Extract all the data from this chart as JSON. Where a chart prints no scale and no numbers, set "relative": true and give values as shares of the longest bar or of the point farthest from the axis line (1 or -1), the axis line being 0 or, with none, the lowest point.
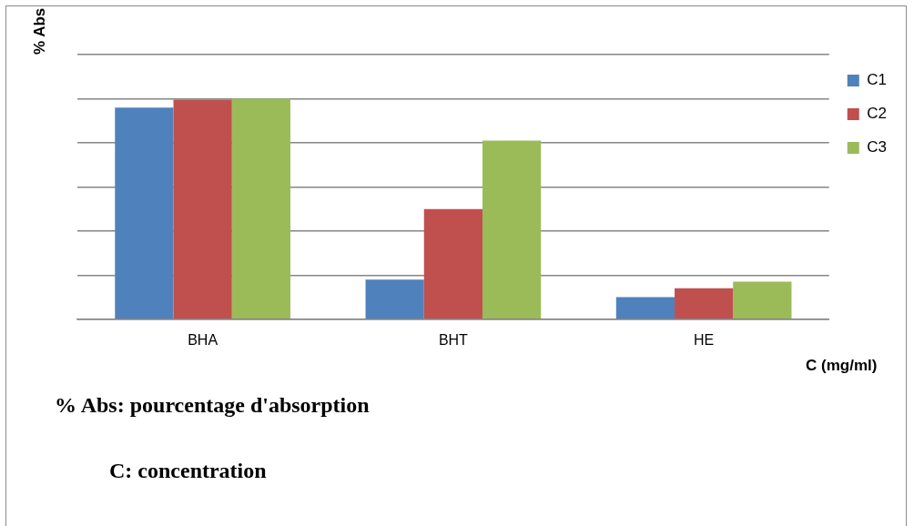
{
  "chart_data": {
    "type": "bar",
    "relative": true,
    "ylabel": "% Abs",
    "xlabel": "C (mg/ml)",
    "categories": [
      "BHA",
      "BHT",
      "HE"
    ],
    "series": [
      {
        "name": "C1",
        "color": "#4f81bd",
        "values": [
          0.96,
          0.18,
          0.1
        ]
      },
      {
        "name": "C2",
        "color": "#c0504d",
        "values": [
          0.996,
          0.5,
          0.14
        ]
      },
      {
        "name": "C3",
        "color": "#9bbb59",
        "values": [
          1,
          0.81,
          0.17
        ]
      }
    ],
    "grid": "y",
    "legend": "right",
    "annotations": [
      "% Abs: pourcentage d'absorption",
      "C: concentration"
    ]
  }
}
